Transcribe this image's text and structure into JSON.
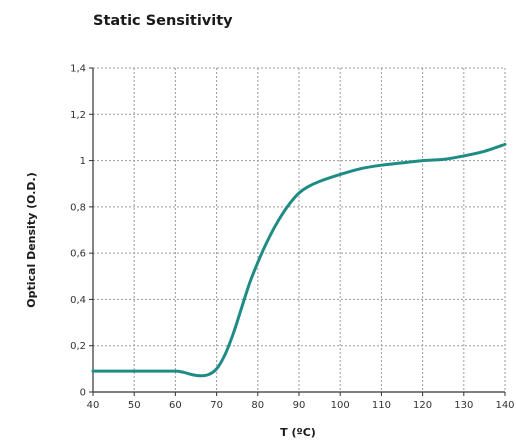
{
  "chart_data": {
    "type": "line",
    "title": "Static Sensitivity",
    "xlabel": "T (ºC)",
    "ylabel": "Optical Density (O.D.)",
    "xlim": [
      40,
      140
    ],
    "ylim": [
      0,
      1.4
    ],
    "x_ticks": [
      "40",
      "50",
      "60",
      "70",
      "80",
      "90",
      "100",
      "110",
      "120",
      "130",
      "140"
    ],
    "y_ticks": [
      "0",
      "0,2",
      "0,4",
      "0,6",
      "0,8",
      "1",
      "1,2",
      "1,4"
    ],
    "grid": true,
    "line_color": "#1e8c85",
    "series": [
      {
        "x": [
          40,
          45,
          50,
          55,
          60,
          62,
          64,
          66,
          68,
          70,
          72,
          74,
          76,
          78,
          80,
          82,
          84,
          86,
          88,
          90,
          92,
          95,
          100,
          105,
          110,
          115,
          120,
          125,
          130,
          135,
          140
        ],
        "y": [
          0.09,
          0.09,
          0.09,
          0.09,
          0.09,
          0.085,
          0.075,
          0.07,
          0.075,
          0.1,
          0.16,
          0.25,
          0.36,
          0.47,
          0.56,
          0.64,
          0.71,
          0.77,
          0.82,
          0.86,
          0.885,
          0.91,
          0.94,
          0.965,
          0.98,
          0.99,
          1.0,
          1.005,
          1.02,
          1.04,
          1.07
        ]
      }
    ]
  }
}
